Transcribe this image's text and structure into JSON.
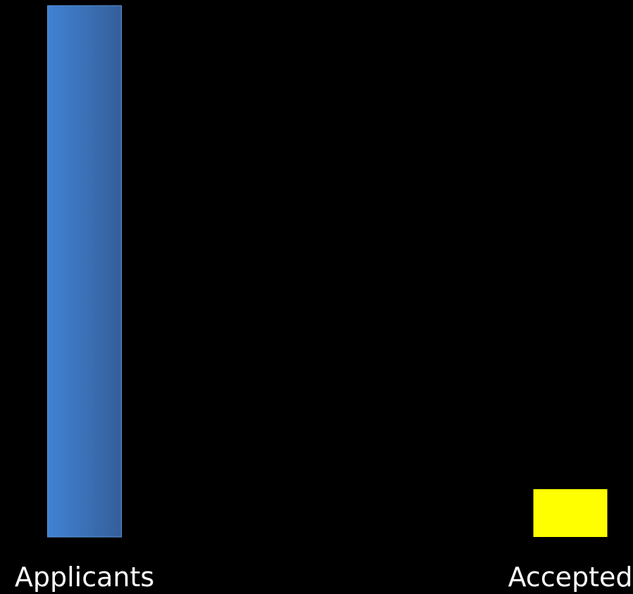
{
  "chart_data": {
    "type": "bar",
    "categories": [
      "Applicants",
      "Accepted"
    ],
    "values": [
      100,
      9
    ],
    "ylim": [
      0,
      100
    ],
    "colors": [
      "#3f7fcf",
      "#ffff00"
    ],
    "grid": false,
    "legend": "none",
    "background": "#000000"
  }
}
